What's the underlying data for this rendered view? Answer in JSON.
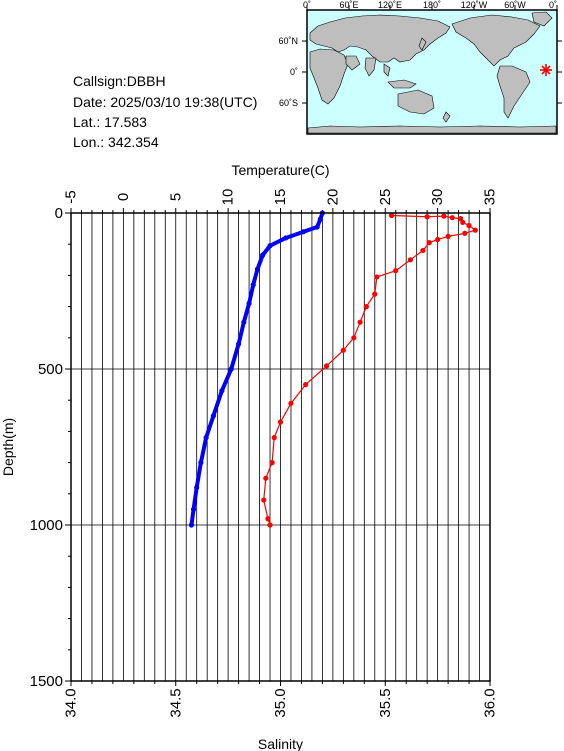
{
  "info": {
    "callsign": "Callsign:DBBH",
    "date": "Date:  2025/03/10 19:38(UTC)",
    "lat": "Lat.:  17.583",
    "lon": "Lon.:  342.354"
  },
  "map": {
    "lon_labels": [
      "0˚",
      "60˚E",
      "120˚E",
      "180˚",
      "120˚W",
      "60˚W",
      "0˚"
    ],
    "lat_labels": [
      "60˚N",
      "0˚",
      "60˚S"
    ],
    "station_marker_color": "#ff0000",
    "ocean_color": "#ccffff",
    "land_color": "#bebebe"
  },
  "chart_data": {
    "type": "line",
    "xlabel_top": "Temperature(C)",
    "xlabel_bottom": "Salinity",
    "ylabel": "Depth(m)",
    "temperature_axis": {
      "range": [
        -5,
        35
      ],
      "ticks": [
        "-5",
        "0",
        "5",
        "10",
        "15",
        "20",
        "25",
        "30",
        "35"
      ]
    },
    "salinity_axis": {
      "range": [
        34.0,
        36.0
      ],
      "ticks": [
        "34.0",
        "34.5",
        "35.0",
        "35.5",
        "36.0"
      ]
    },
    "depth_axis": {
      "range": [
        0,
        1500
      ],
      "inverted": true,
      "ticks": [
        "0",
        "500",
        "1000",
        "1500"
      ]
    },
    "grid": true,
    "series": [
      {
        "color": "#0000ff",
        "axis": "temperature",
        "points": [
          [
            19.0,
            0
          ],
          [
            18.8,
            20
          ],
          [
            18.5,
            45
          ],
          [
            17.2,
            60
          ],
          [
            15.5,
            80
          ],
          [
            14.0,
            105
          ],
          [
            13.3,
            135
          ],
          [
            12.8,
            180
          ],
          [
            12.4,
            230
          ],
          [
            12.0,
            290
          ],
          [
            11.5,
            350
          ],
          [
            11.0,
            420
          ],
          [
            10.3,
            500
          ],
          [
            9.4,
            570
          ],
          [
            8.6,
            650
          ],
          [
            7.9,
            720
          ],
          [
            7.4,
            800
          ],
          [
            7.0,
            880
          ],
          [
            6.7,
            950
          ],
          [
            6.5,
            1000
          ]
        ]
      },
      {
        "color": "#ff0000",
        "axis": "salinity",
        "points": [
          [
            35.53,
            8
          ],
          [
            35.7,
            12
          ],
          [
            35.78,
            10
          ],
          [
            35.82,
            15
          ],
          [
            35.86,
            18
          ],
          [
            35.87,
            30
          ],
          [
            35.9,
            40
          ],
          [
            35.93,
            55
          ],
          [
            35.88,
            65
          ],
          [
            35.8,
            75
          ],
          [
            35.75,
            85
          ],
          [
            35.71,
            95
          ],
          [
            35.68,
            120
          ],
          [
            35.62,
            150
          ],
          [
            35.55,
            185
          ],
          [
            35.46,
            205
          ],
          [
            35.45,
            260
          ],
          [
            35.41,
            300
          ],
          [
            35.38,
            350
          ],
          [
            35.35,
            400
          ],
          [
            35.3,
            440
          ],
          [
            35.22,
            490
          ],
          [
            35.12,
            550
          ],
          [
            35.05,
            610
          ],
          [
            35.0,
            670
          ],
          [
            34.97,
            720
          ],
          [
            34.96,
            800
          ],
          [
            34.93,
            850
          ],
          [
            34.92,
            920
          ],
          [
            34.94,
            980
          ],
          [
            34.95,
            1000
          ]
        ]
      }
    ]
  }
}
